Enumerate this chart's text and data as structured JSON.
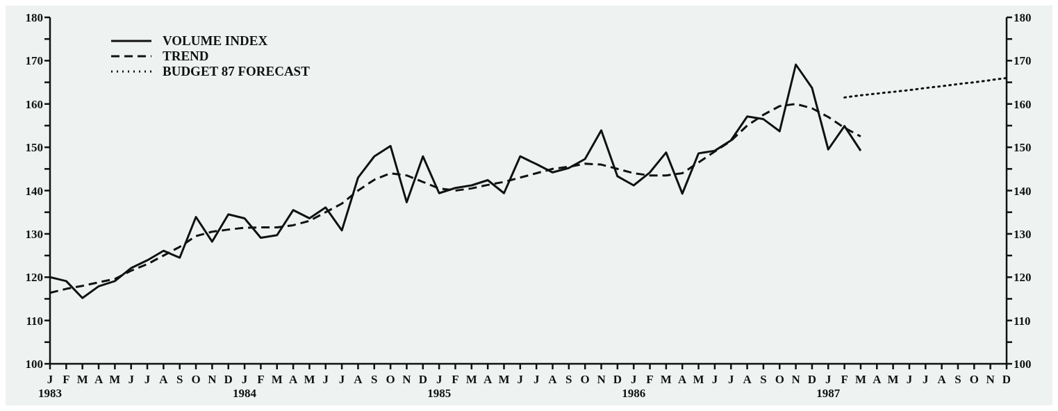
{
  "chart_data": {
    "type": "line",
    "categories": [
      "J\n1983",
      "F",
      "M",
      "A",
      "M",
      "J",
      "J",
      "A",
      "S",
      "O",
      "N",
      "D",
      "J\n1984",
      "F",
      "M",
      "A",
      "M",
      "J",
      "J",
      "A",
      "S",
      "O",
      "N",
      "D",
      "J\n1985",
      "F",
      "M",
      "A",
      "M",
      "J",
      "J",
      "A",
      "S",
      "O",
      "N",
      "D",
      "J\n1986",
      "F",
      "M",
      "A",
      "M",
      "J",
      "J",
      "A",
      "S",
      "O",
      "N",
      "D",
      "J\n1987",
      "F",
      "M",
      "A",
      "M",
      "J",
      "J",
      "A",
      "S",
      "O",
      "N",
      "D"
    ],
    "series": [
      {
        "name": "VOLUME INDEX",
        "color": "#111111",
        "line_style": "solid",
        "values": [
          120.0,
          119.1,
          115.2,
          117.9,
          119.1,
          122.1,
          123.9,
          126.1,
          124.5,
          133.9,
          128.2,
          134.5,
          133.6,
          129.1,
          129.7,
          135.5,
          133.6,
          136.1,
          130.8,
          143.0,
          147.9,
          150.3,
          137.3,
          147.9,
          139.4,
          140.6,
          141.2,
          142.4,
          139.4,
          147.9,
          146.1,
          144.2,
          145.2,
          147.3,
          153.9,
          143.3,
          141.2,
          144.2,
          148.8,
          139.3,
          148.6,
          149.2,
          151.6,
          157.1,
          156.5,
          153.7,
          169.1,
          163.7,
          149.5,
          154.9,
          149.2,
          null,
          null,
          null,
          null,
          null,
          null,
          null,
          null,
          null
        ]
      },
      {
        "name": "TREND",
        "color": "#111111",
        "line_style": "dashed",
        "values": [
          116.4,
          117.3,
          118.0,
          118.8,
          119.6,
          121.5,
          123.0,
          125.0,
          127.0,
          129.5,
          130.5,
          131.0,
          131.4,
          131.5,
          131.5,
          132.0,
          133.0,
          135.0,
          137.0,
          140.0,
          142.5,
          144.0,
          143.5,
          142.0,
          140.5,
          140.0,
          140.5,
          141.3,
          142.0,
          143.0,
          144.0,
          145.0,
          145.5,
          146.2,
          146.0,
          145.0,
          144.0,
          143.5,
          143.5,
          144.0,
          146.5,
          149.0,
          151.5,
          155.0,
          157.5,
          159.5,
          160.0,
          159.0,
          157.0,
          154.5,
          152.5,
          null,
          null,
          null,
          null,
          null,
          null,
          null,
          null,
          null
        ]
      },
      {
        "name": "BUDGET 87 FORECAST",
        "color": "#111111",
        "line_style": "dotted",
        "values": [
          null,
          null,
          null,
          null,
          null,
          null,
          null,
          null,
          null,
          null,
          null,
          null,
          null,
          null,
          null,
          null,
          null,
          null,
          null,
          null,
          null,
          null,
          null,
          null,
          null,
          null,
          null,
          null,
          null,
          null,
          null,
          null,
          null,
          null,
          null,
          null,
          null,
          null,
          null,
          null,
          null,
          null,
          null,
          null,
          null,
          null,
          null,
          null,
          null,
          161.5,
          162.0,
          162.4,
          162.8,
          163.2,
          163.7,
          164.1,
          164.6,
          165.0,
          165.5,
          166.0
        ]
      }
    ],
    "ylim": [
      100,
      180
    ],
    "yticks": [
      100,
      {
        "value": 105,
        "label": null
      },
      110,
      {
        "value": 115,
        "label": null
      },
      120,
      {
        "value": 125,
        "label": null
      },
      130,
      {
        "value": 135,
        "label": null
      },
      140,
      {
        "value": 145,
        "label": null
      },
      150,
      {
        "value": 155,
        "label": null
      },
      160,
      {
        "value": 165,
        "label": null
      },
      170,
      {
        "value": 175,
        "label": null
      },
      180
    ],
    "y2lim": [
      100,
      180
    ],
    "y2ticks": [
      100,
      {
        "value": 105,
        "label": null
      },
      110,
      {
        "value": 115,
        "label": null
      },
      120,
      {
        "value": 125,
        "label": null
      },
      130,
      {
        "value": 135,
        "label": null
      },
      140,
      {
        "value": 145,
        "label": null
      },
      150,
      {
        "value": 155,
        "label": null
      },
      160,
      {
        "value": 165,
        "label": null
      },
      170,
      {
        "value": 175,
        "label": null
      },
      180
    ],
    "legend": "top left",
    "grid": false,
    "marker": "none"
  }
}
